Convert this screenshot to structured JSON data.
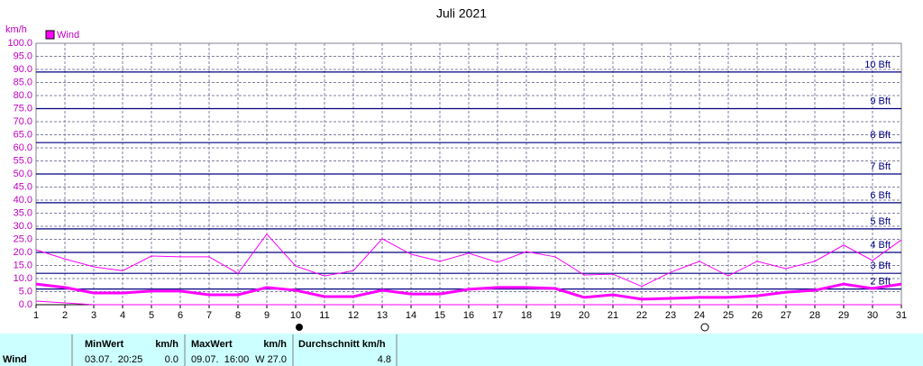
{
  "chart_data": {
    "type": "line",
    "title": "Juli 2021",
    "ylabel": "km/h",
    "x": [
      1,
      2,
      3,
      4,
      5,
      6,
      7,
      8,
      9,
      10,
      11,
      12,
      13,
      14,
      15,
      16,
      17,
      18,
      19,
      20,
      21,
      22,
      23,
      24,
      25,
      26,
      27,
      28,
      29,
      30,
      31
    ],
    "xlim": [
      1,
      31
    ],
    "xticks": [
      1,
      2,
      3,
      4,
      5,
      6,
      7,
      8,
      9,
      10,
      11,
      12,
      13,
      14,
      15,
      16,
      17,
      18,
      19,
      20,
      21,
      22,
      23,
      24,
      25,
      26,
      27,
      28,
      29,
      30,
      31
    ],
    "ylim": [
      0,
      100
    ],
    "yticks": [
      {
        "value": 0,
        "label": "0.0"
      },
      {
        "value": 5,
        "label": "5.0"
      },
      {
        "value": 10,
        "label": "10.0"
      },
      {
        "value": 15,
        "label": "15.0"
      },
      {
        "value": 20,
        "label": "20.0"
      },
      {
        "value": 25,
        "label": "25.0"
      },
      {
        "value": 30,
        "label": "30.0"
      },
      {
        "value": 35,
        "label": "35.0"
      },
      {
        "value": 40,
        "label": "40.0"
      },
      {
        "value": 45,
        "label": "45.0"
      },
      {
        "value": 50,
        "label": "50.0"
      },
      {
        "value": 55,
        "label": "55.0"
      },
      {
        "value": 60,
        "label": "60.0"
      },
      {
        "value": 65,
        "label": "65.0"
      },
      {
        "value": 70,
        "label": "70.0"
      },
      {
        "value": 75,
        "label": "75.0"
      },
      {
        "value": 80,
        "label": "80.0"
      },
      {
        "value": 85,
        "label": "85.0"
      },
      {
        "value": 90,
        "label": "90.0"
      },
      {
        "value": 95,
        "label": "95.0"
      },
      {
        "value": 100,
        "label": "100.0"
      }
    ],
    "grid": true,
    "reference_lines": [
      {
        "value": 6,
        "label": "2 Bft"
      },
      {
        "value": 12,
        "label": "3 Bft"
      },
      {
        "value": 20,
        "label": "4 Bft"
      },
      {
        "value": 29,
        "label": "5 Bft"
      },
      {
        "value": 39,
        "label": "6 Bft"
      },
      {
        "value": 50,
        "label": "7 Bft"
      },
      {
        "value": 62,
        "label": "8 Bft"
      },
      {
        "value": 75,
        "label": "9 Bft"
      },
      {
        "value": 89,
        "label": "10 Bft"
      }
    ],
    "series": [
      {
        "name": "Wind",
        "color": "#ff00ff",
        "values": [
          7.9,
          6.6,
          4.5,
          4.5,
          5.2,
          5.2,
          3.8,
          3.8,
          6.6,
          5.5,
          3.1,
          3.1,
          5.5,
          4.1,
          4.1,
          5.9,
          6.6,
          6.6,
          6.2,
          2.8,
          3.8,
          2.1,
          2.4,
          2.8,
          2.8,
          3.4,
          4.8,
          5.5,
          7.9,
          6.2,
          7.9
        ]
      },
      {
        "color": "#ff00ff",
        "values": [
          21,
          17.5,
          14.5,
          13,
          18.6,
          18.3,
          18.3,
          12,
          27,
          14.8,
          11,
          13,
          25.2,
          19.3,
          16.6,
          19.7,
          16.2,
          20.3,
          18.3,
          11.4,
          11.7,
          7,
          12.4,
          16.6,
          11,
          16.6,
          13.8,
          16.6,
          22.8,
          16.9,
          24.8
        ]
      },
      {
        "color": "#ff00ff",
        "values": [
          1.4,
          0.7,
          0,
          0,
          0,
          0,
          0,
          0,
          0,
          0,
          0,
          0,
          0,
          0,
          0,
          0,
          0,
          0,
          0,
          0,
          0,
          0,
          0,
          0,
          0,
          0,
          0,
          0,
          0,
          0,
          0
        ]
      }
    ]
  },
  "stats": {
    "row_label": "Wind",
    "columns": [
      {
        "title": "MinWert",
        "unit": "km/h",
        "time": "03.07.  20:25",
        "value": "0.0"
      },
      {
        "title": "MaxWert",
        "unit": "km/h",
        "time": "09.07.  16:00",
        "value": "W 27.0"
      },
      {
        "title": "Durchschnitt km/h",
        "value": "4.8"
      }
    ]
  }
}
